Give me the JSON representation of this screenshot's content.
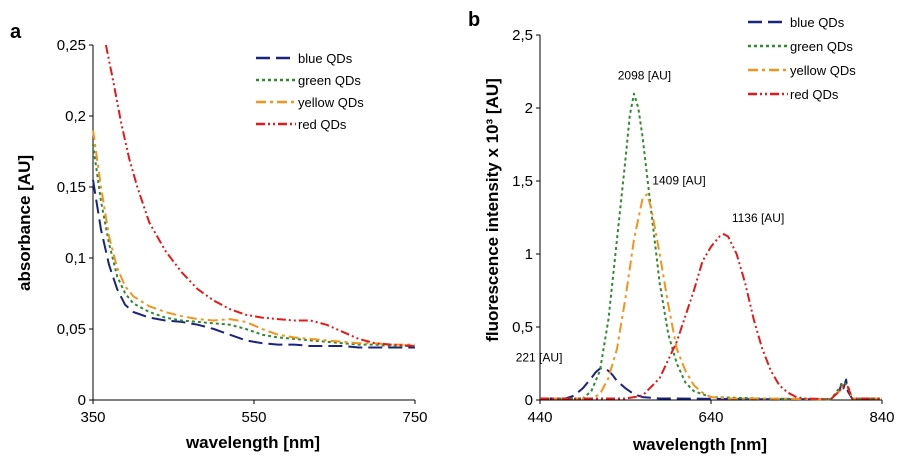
{
  "colors": {
    "blue": "#1a237e",
    "green": "#2e8b2e",
    "yellow": "#f5931e",
    "red": "#e51919",
    "axis": "#000000"
  },
  "chart_data": [
    {
      "type": "line",
      "panel_label": "a",
      "xlabel": "wavelength [nm]",
      "ylabel": "absorbance [AU]",
      "xlim": [
        350,
        750
      ],
      "ylim": [
        0,
        0.25
      ],
      "x_ticks": [
        350,
        550,
        750
      ],
      "x_tick_labels": [
        "350",
        "550",
        "750"
      ],
      "y_ticks": [
        0,
        0.05,
        0.1,
        0.15,
        0.2,
        0.25
      ],
      "y_tick_labels": [
        "0",
        "0,05",
        "0,1",
        "0,15",
        "0,2",
        "0,25"
      ],
      "grid": false,
      "legend_position": "top-right",
      "series": [
        {
          "name": "blue QDs",
          "color": "blue",
          "dash": "long-dash",
          "x": [
            350,
            360,
            370,
            380,
            390,
            400,
            420,
            440,
            460,
            480,
            500,
            520,
            540,
            560,
            580,
            600,
            620,
            640,
            660,
            680,
            700,
            720,
            750
          ],
          "y": [
            0.155,
            0.12,
            0.095,
            0.078,
            0.067,
            0.062,
            0.058,
            0.056,
            0.055,
            0.053,
            0.05,
            0.046,
            0.042,
            0.04,
            0.039,
            0.039,
            0.038,
            0.038,
            0.038,
            0.037,
            0.037,
            0.037,
            0.037
          ]
        },
        {
          "name": "green QDs",
          "color": "green",
          "dash": "dotted",
          "x": [
            350,
            360,
            370,
            380,
            390,
            400,
            420,
            440,
            460,
            480,
            500,
            520,
            540,
            560,
            580,
            600,
            620,
            640,
            660,
            680,
            700,
            720,
            750
          ],
          "y": [
            0.18,
            0.14,
            0.11,
            0.087,
            0.075,
            0.068,
            0.062,
            0.058,
            0.056,
            0.055,
            0.054,
            0.053,
            0.05,
            0.046,
            0.044,
            0.043,
            0.042,
            0.041,
            0.04,
            0.039,
            0.039,
            0.038,
            0.038
          ]
        },
        {
          "name": "yellow QDs",
          "color": "yellow",
          "dash": "dash-dot",
          "x": [
            350,
            360,
            370,
            380,
            390,
            400,
            420,
            440,
            460,
            480,
            500,
            520,
            540,
            560,
            580,
            600,
            620,
            640,
            660,
            680,
            700,
            720,
            750
          ],
          "y": [
            0.19,
            0.15,
            0.115,
            0.093,
            0.08,
            0.073,
            0.066,
            0.062,
            0.059,
            0.057,
            0.056,
            0.057,
            0.055,
            0.05,
            0.046,
            0.044,
            0.043,
            0.042,
            0.041,
            0.04,
            0.04,
            0.039,
            0.039
          ]
        },
        {
          "name": "red QDs",
          "color": "red",
          "dash": "dash-dot-dot",
          "x": [
            366,
            375,
            385,
            395,
            405,
            420,
            440,
            460,
            480,
            500,
            520,
            540,
            560,
            580,
            600,
            620,
            640,
            660,
            680,
            700,
            720,
            750
          ],
          "y": [
            0.25,
            0.225,
            0.195,
            0.17,
            0.15,
            0.125,
            0.105,
            0.09,
            0.078,
            0.07,
            0.064,
            0.06,
            0.058,
            0.057,
            0.056,
            0.056,
            0.053,
            0.048,
            0.043,
            0.04,
            0.039,
            0.038
          ]
        }
      ]
    },
    {
      "type": "line",
      "panel_label": "b",
      "xlabel": "wavelength [nm]",
      "ylabel": "fluorescence intensity x 10³ [AU]",
      "xlim": [
        440,
        840
      ],
      "ylim": [
        0,
        2.5
      ],
      "x_ticks": [
        440,
        640,
        840
      ],
      "x_tick_labels": [
        "440",
        "640",
        "840"
      ],
      "y_ticks": [
        0,
        0.5,
        1,
        1.5,
        2,
        2.5
      ],
      "y_tick_labels": [
        "0",
        "0,5",
        "1",
        "1,5",
        "2",
        "2,5"
      ],
      "grid": false,
      "legend_position": "top-right",
      "annotations": [
        {
          "text": "221 [AU]",
          "x": 513,
          "y": 0.221
        },
        {
          "text": "2098 [AU]",
          "x": 552,
          "y": 2.098
        },
        {
          "text": "1409 [AU]",
          "x": 562,
          "y": 1.409
        },
        {
          "text": "1136 [AU]",
          "x": 655,
          "y": 1.136
        }
      ],
      "series": [
        {
          "name": "blue QDs",
          "color": "blue",
          "dash": "long-dash",
          "x": [
            440,
            470,
            480,
            490,
            500,
            505,
            510,
            515,
            520,
            525,
            530,
            540,
            550,
            560,
            580,
            600,
            700,
            780,
            790,
            793,
            795,
            798,
            800,
            805,
            840
          ],
          "y": [
            0.01,
            0.01,
            0.03,
            0.08,
            0.15,
            0.19,
            0.215,
            0.221,
            0.2,
            0.17,
            0.13,
            0.08,
            0.04,
            0.02,
            0.01,
            0.01,
            0.005,
            0.005,
            0.06,
            0.12,
            0.08,
            0.14,
            0.06,
            0.01,
            0.01
          ]
        },
        {
          "name": "green QDs",
          "color": "green",
          "dash": "dotted",
          "x": [
            440,
            490,
            500,
            510,
            520,
            530,
            540,
            545,
            550,
            555,
            560,
            570,
            580,
            590,
            600,
            610,
            620,
            640,
            700,
            780,
            790,
            795,
            800,
            805,
            840
          ],
          "y": [
            0.01,
            0.01,
            0.06,
            0.2,
            0.55,
            1.1,
            1.65,
            1.95,
            2.098,
            2.0,
            1.8,
            1.3,
            0.8,
            0.45,
            0.25,
            0.12,
            0.06,
            0.02,
            0.01,
            0.005,
            0.08,
            0.12,
            0.1,
            0.01,
            0.01
          ]
        },
        {
          "name": "yellow QDs",
          "color": "yellow",
          "dash": "dash-dot",
          "x": [
            440,
            500,
            510,
            520,
            530,
            540,
            550,
            560,
            565,
            570,
            580,
            590,
            600,
            610,
            620,
            630,
            640,
            660,
            700,
            780,
            790,
            795,
            800,
            805,
            840
          ],
          "y": [
            0.01,
            0.01,
            0.04,
            0.15,
            0.35,
            0.7,
            1.1,
            1.38,
            1.409,
            1.32,
            1.0,
            0.65,
            0.35,
            0.2,
            0.1,
            0.05,
            0.02,
            0.01,
            0.01,
            0.005,
            0.06,
            0.1,
            0.09,
            0.01,
            0.01
          ]
        },
        {
          "name": "red QDs",
          "color": "red",
          "dash": "dash-dot-dot",
          "x": [
            440,
            540,
            560,
            580,
            600,
            620,
            630,
            640,
            650,
            655,
            660,
            670,
            680,
            690,
            700,
            710,
            720,
            730,
            740,
            750,
            780,
            790,
            795,
            800,
            805,
            840
          ],
          "y": [
            0.01,
            0.01,
            0.03,
            0.15,
            0.4,
            0.75,
            0.95,
            1.05,
            1.12,
            1.136,
            1.12,
            1.0,
            0.8,
            0.55,
            0.35,
            0.2,
            0.1,
            0.05,
            0.02,
            0.01,
            0.005,
            0.06,
            0.1,
            0.09,
            0.01,
            0.01
          ]
        }
      ]
    }
  ]
}
